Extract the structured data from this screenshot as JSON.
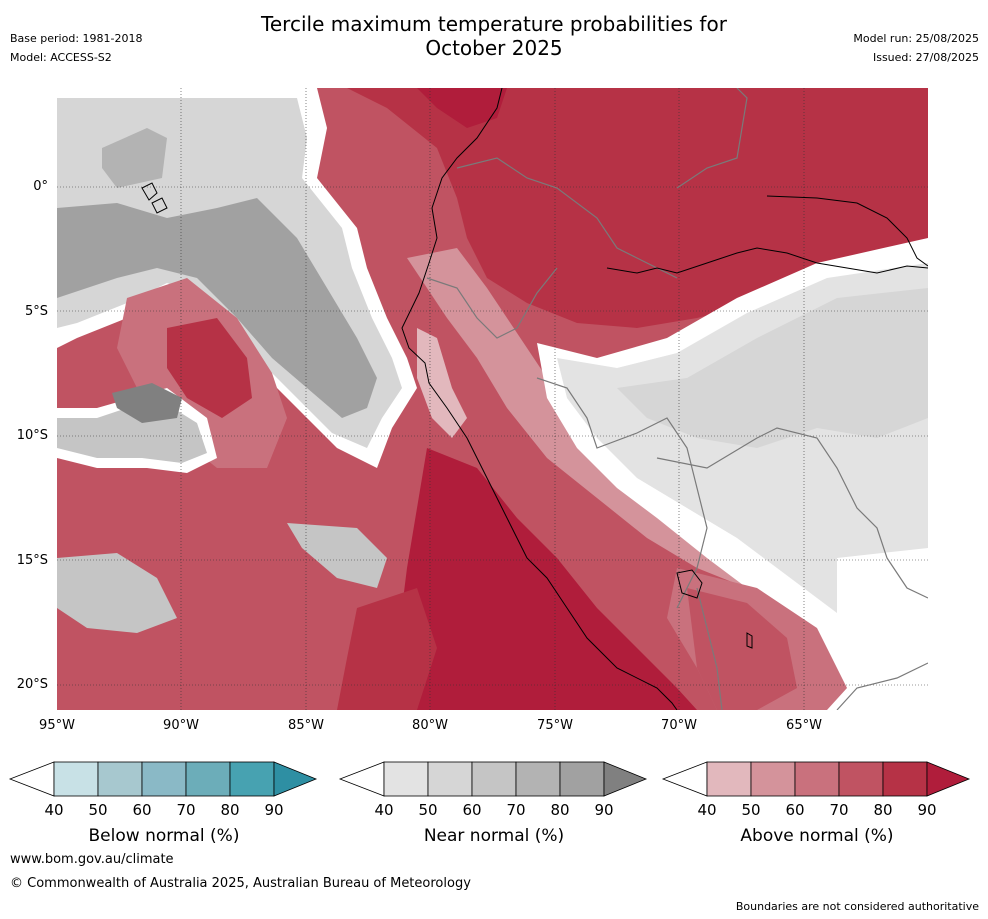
{
  "title_line1": "Tercile maximum temperature probabilities for",
  "title_line2": "October 2025",
  "meta": {
    "base_period": "Base period: 1981-2018",
    "model": "Model: ACCESS-S2",
    "model_run": "Model run: 25/08/2025",
    "issued": "Issued: 27/08/2025"
  },
  "map": {
    "lat_labels": [
      "0°",
      "5°S",
      "10°S",
      "15°S",
      "20°S"
    ],
    "lon_labels": [
      "95°W",
      "90°W",
      "85°W",
      "80°W",
      "75°W",
      "70°W",
      "65°W"
    ]
  },
  "colorbars": {
    "below": {
      "title": "Below normal (%)",
      "ticks": [
        "40",
        "50",
        "60",
        "70",
        "80",
        "90"
      ],
      "colors": [
        "#ffffff",
        "#c8e1e6",
        "#a7c8cf",
        "#8ab9c6",
        "#6cadb9",
        "#47a2b1",
        "#2e8fa3"
      ]
    },
    "near": {
      "title": "Near normal (%)",
      "ticks": [
        "40",
        "50",
        "60",
        "70",
        "80",
        "90"
      ],
      "colors": [
        "#ffffff",
        "#e3e3e3",
        "#d6d6d6",
        "#c5c5c5",
        "#b3b3b3",
        "#a1a1a1",
        "#808080"
      ]
    },
    "above": {
      "title": "Above normal (%)",
      "ticks": [
        "40",
        "50",
        "60",
        "70",
        "80",
        "90"
      ],
      "colors": [
        "#ffffff",
        "#e2b8bd",
        "#d4939b",
        "#c9717d",
        "#c05362",
        "#b63246",
        "#b01d3b"
      ]
    }
  },
  "footer": {
    "url": "www.bom.gov.au/climate",
    "copyright": "© Commonwealth of Australia 2025, Australian Bureau of Meteorology",
    "note": "Boundaries are not considered authoritative"
  }
}
